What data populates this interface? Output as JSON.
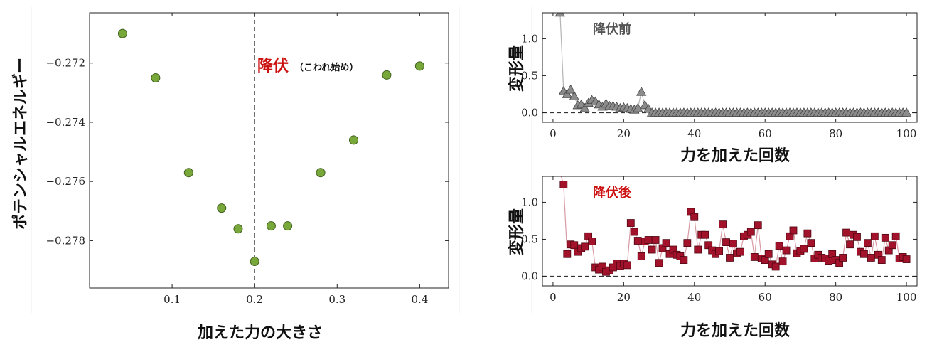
{
  "colors": {
    "left_marker_fill": "#78a83a",
    "left_marker_edge": "#3f5f1c",
    "before_fill": "#8c8c8c",
    "before_edge": "#444444",
    "before_line": "#b5b5b5",
    "after_fill": "#a3122b",
    "after_edge": "#4d0712",
    "after_line": "#d89aa4",
    "highlight_red": "#cc1111",
    "label_gray": "#555555"
  },
  "chart_data": [
    {
      "type": "scatter",
      "xlabel": "加えた力の大きさ",
      "ylabel": "ポテンシャルエネルギー",
      "xlim": [
        0.0,
        0.435
      ],
      "ylim": [
        -0.2796,
        -0.2703
      ],
      "xticks": [
        0.1,
        0.2,
        0.3,
        0.4
      ],
      "xtick_labels": [
        "0.1",
        "0.2",
        "0.3",
        "0.4"
      ],
      "yticks": [
        -0.272,
        -0.274,
        -0.276,
        -0.278
      ],
      "ytick_labels": [
        "−0.272",
        "−0.274",
        "−0.276",
        "−0.278"
      ],
      "x": [
        0.04,
        0.08,
        0.12,
        0.16,
        0.18,
        0.2,
        0.22,
        0.24,
        0.28,
        0.32,
        0.36,
        0.4
      ],
      "y": [
        -0.271,
        -0.2725,
        -0.2757,
        -0.2769,
        -0.2776,
        -0.2787,
        -0.2775,
        -0.2775,
        -0.2757,
        -0.2746,
        -0.2724,
        -0.2721
      ],
      "vline": 0.2,
      "annotation": {
        "main": "降伏",
        "sub": "（こわれ始め）"
      },
      "grid": false
    },
    {
      "type": "line",
      "title": "降伏前",
      "xlabel": "力を加えた回数",
      "ylabel": "変形量",
      "xlim": [
        -3,
        103
      ],
      "ylim": [
        -0.13,
        1.35
      ],
      "xticks": [
        0,
        20,
        40,
        60,
        80,
        100
      ],
      "xtick_labels": [
        "0",
        "20",
        "40",
        "60",
        "80",
        "100"
      ],
      "yticks": [
        0.0,
        0.5,
        1.0
      ],
      "ytick_labels": [
        "0.0",
        "0.5",
        "1.0"
      ],
      "hline": 0.0,
      "marker": "triangle",
      "x": [
        2,
        3,
        4,
        5,
        6,
        7,
        8,
        9,
        10,
        11,
        12,
        13,
        14,
        15,
        16,
        17,
        18,
        19,
        20,
        21,
        22,
        23,
        24,
        25,
        26,
        27,
        28,
        29,
        30,
        31,
        32,
        33,
        34,
        35,
        36,
        37,
        38,
        39,
        40,
        41,
        42,
        43,
        44,
        45,
        46,
        47,
        48,
        49,
        50,
        51,
        52,
        53,
        54,
        55,
        56,
        57,
        58,
        59,
        60,
        61,
        62,
        63,
        64,
        65,
        66,
        67,
        68,
        69,
        70,
        71,
        72,
        73,
        74,
        75,
        76,
        77,
        78,
        79,
        80,
        81,
        82,
        83,
        84,
        85,
        86,
        87,
        88,
        89,
        90,
        91,
        92,
        93,
        94,
        95,
        96,
        97,
        98,
        99,
        100
      ],
      "y": [
        1.35,
        0.29,
        0.25,
        0.31,
        0.22,
        0.1,
        0.11,
        0.06,
        0.13,
        0.17,
        0.15,
        0.11,
        0.08,
        0.12,
        0.09,
        0.09,
        0.08,
        0.06,
        0.07,
        0.06,
        0.05,
        0.04,
        0.06,
        0.28,
        0.1,
        0.05,
        0.0,
        0.0,
        0.0,
        0.0,
        0.0,
        0.0,
        0.0,
        0.0,
        0.0,
        0.0,
        0.0,
        0.0,
        0.0,
        0.0,
        0.0,
        0.0,
        0.0,
        0.0,
        0.0,
        0.0,
        0.0,
        0.0,
        0.0,
        0.0,
        0.0,
        0.0,
        0.0,
        0.0,
        0.0,
        0.0,
        0.0,
        0.0,
        0.0,
        0.0,
        0.0,
        0.0,
        0.0,
        0.0,
        0.0,
        0.0,
        0.0,
        0.0,
        0.0,
        0.0,
        0.0,
        0.0,
        0.0,
        0.0,
        0.0,
        0.0,
        0.0,
        0.0,
        0.0,
        0.0,
        0.0,
        0.0,
        0.0,
        0.0,
        0.0,
        0.0,
        0.0,
        0.0,
        0.0,
        0.0,
        0.0,
        0.0,
        0.0,
        0.0,
        0.0,
        0.0,
        0.0,
        0.0,
        0.0
      ],
      "grid": false
    },
    {
      "type": "line",
      "title": "降伏後",
      "xlabel": "力を加えた回数",
      "ylabel": "変形量",
      "xlim": [
        -3,
        103
      ],
      "ylim": [
        -0.13,
        1.35
      ],
      "xticks": [
        0,
        20,
        40,
        60,
        80,
        100
      ],
      "xtick_labels": [
        "0",
        "20",
        "40",
        "60",
        "80",
        "100"
      ],
      "yticks": [
        0.0,
        0.5,
        1.0
      ],
      "ytick_labels": [
        "0.0",
        "0.5",
        "1.0"
      ],
      "hline": 0.0,
      "marker": "square",
      "x": [
        2,
        3,
        4,
        5,
        6,
        7,
        8,
        9,
        10,
        11,
        12,
        13,
        14,
        15,
        16,
        17,
        18,
        19,
        20,
        21,
        22,
        23,
        24,
        25,
        26,
        27,
        28,
        29,
        30,
        31,
        32,
        33,
        34,
        35,
        36,
        37,
        38,
        39,
        40,
        41,
        42,
        43,
        44,
        45,
        46,
        47,
        48,
        49,
        50,
        51,
        52,
        53,
        54,
        55,
        56,
        57,
        58,
        59,
        60,
        61,
        62,
        63,
        64,
        65,
        66,
        67,
        68,
        69,
        70,
        71,
        72,
        73,
        74,
        75,
        76,
        77,
        78,
        79,
        80,
        81,
        82,
        83,
        84,
        85,
        86,
        87,
        88,
        89,
        90,
        91,
        92,
        93,
        94,
        95,
        96,
        97,
        98,
        99,
        100
      ],
      "y": [
        1.4,
        1.24,
        0.3,
        0.43,
        0.42,
        0.33,
        0.38,
        0.4,
        0.54,
        0.47,
        0.12,
        0.09,
        0.13,
        0.06,
        0.08,
        0.12,
        0.17,
        0.14,
        0.17,
        0.15,
        0.72,
        0.6,
        0.48,
        0.27,
        0.47,
        0.49,
        0.36,
        0.49,
        0.18,
        0.38,
        0.45,
        0.3,
        0.36,
        0.29,
        0.27,
        0.22,
        0.45,
        0.87,
        0.8,
        0.36,
        0.56,
        0.56,
        0.42,
        0.35,
        0.3,
        0.34,
        0.7,
        0.46,
        0.25,
        0.44,
        0.31,
        0.33,
        0.54,
        0.56,
        0.6,
        0.26,
        0.69,
        0.24,
        0.22,
        0.3,
        0.16,
        0.13,
        0.41,
        0.2,
        0.35,
        0.54,
        0.62,
        0.31,
        0.34,
        0.37,
        0.58,
        0.45,
        0.24,
        0.29,
        0.25,
        0.24,
        0.21,
        0.3,
        0.22,
        0.18,
        0.25,
        0.59,
        0.43,
        0.56,
        0.53,
        0.33,
        0.3,
        0.45,
        0.25,
        0.54,
        0.29,
        0.22,
        0.52,
        0.35,
        0.42,
        0.54,
        0.24,
        0.26,
        0.23
      ],
      "grid": false
    }
  ]
}
